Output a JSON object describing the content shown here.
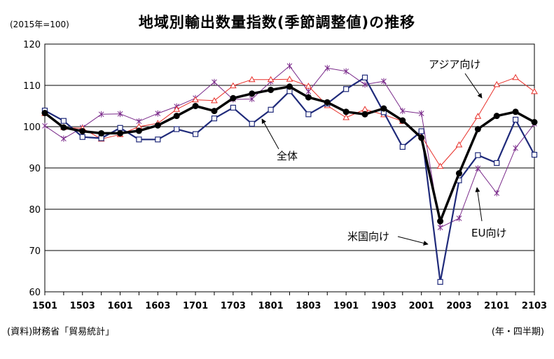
{
  "chart_data": {
    "type": "line",
    "title": "地域別輸出数量指数(季節調整値)の推移",
    "unit_label": "(2015年=100)",
    "source": "(資料)財務省「貿易統計」",
    "period_label": "(年・四半期)",
    "ylim": [
      60,
      120
    ],
    "yticks": [
      60,
      70,
      80,
      90,
      100,
      110,
      120
    ],
    "x": [
      "1501",
      "1502",
      "1503",
      "1504",
      "1601",
      "1602",
      "1603",
      "1604",
      "1701",
      "1702",
      "1703",
      "1704",
      "1801",
      "1802",
      "1803",
      "1804",
      "1901",
      "1902",
      "1903",
      "1904",
      "2001",
      "2002",
      "2003",
      "2004",
      "2101",
      "2102",
      "2103"
    ],
    "xtick_labels": [
      "1501",
      "1503",
      "1601",
      "1603",
      "1701",
      "1703",
      "1801",
      "1803",
      "1901",
      "1903",
      "2001",
      "2003",
      "2101",
      "2103"
    ],
    "grid": "horizontal",
    "series": [
      {
        "name": "全体",
        "color": "#000000",
        "marker": "dot",
        "values": [
          103.3,
          99.8,
          98.9,
          98.4,
          98.4,
          99.0,
          100.3,
          102.6,
          105.0,
          103.8,
          106.9,
          108.0,
          108.9,
          109.7,
          107.1,
          105.9,
          103.6,
          103.0,
          104.4,
          101.5,
          97.3,
          77.1,
          88.7,
          99.4,
          102.6,
          103.6,
          101.1
        ]
      },
      {
        "name": "米国向け",
        "color": "#1f2a7a",
        "marker": "square",
        "values": [
          103.9,
          101.4,
          97.5,
          97.2,
          99.7,
          96.9,
          96.9,
          99.4,
          98.2,
          102.0,
          104.6,
          100.7,
          104.1,
          108.6,
          103.0,
          105.6,
          109.1,
          111.9,
          103.5,
          95.1,
          98.9,
          62.4,
          87.0,
          93.1,
          91.2,
          101.7,
          93.2
        ]
      },
      {
        "name": "アジア向け",
        "color": "#e8302a",
        "marker": "triangle",
        "values": [
          103.2,
          99.8,
          99.6,
          97.0,
          98.1,
          100.0,
          100.8,
          104.2,
          106.5,
          106.3,
          109.9,
          111.4,
          111.4,
          111.5,
          109.8,
          105.1,
          102.2,
          104.2,
          102.9,
          101.3,
          97.7,
          90.4,
          95.6,
          102.5,
          110.2,
          111.9,
          108.5
        ]
      },
      {
        "name": "EU向け",
        "color": "#7a2a8a",
        "marker": "x",
        "values": [
          100.2,
          97.1,
          99.8,
          103.0,
          103.1,
          101.3,
          103.2,
          104.9,
          106.9,
          110.8,
          106.6,
          106.7,
          110.9,
          114.7,
          108.5,
          114.2,
          113.4,
          110.2,
          111.0,
          103.8,
          103.2,
          75.6,
          77.8,
          89.9,
          83.9,
          94.8,
          100.7
        ]
      }
    ],
    "annotations": [
      {
        "text": "アジア向け",
        "series": "アジア向け"
      },
      {
        "text": "全体",
        "series": "全体"
      },
      {
        "text": "米国向け",
        "series": "米国向け"
      },
      {
        "text": "EU向け",
        "series": "EU向け"
      }
    ]
  }
}
